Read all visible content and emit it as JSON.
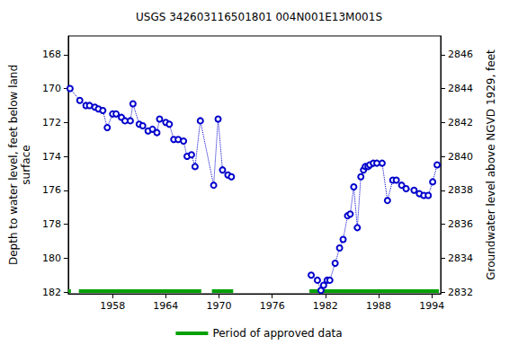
{
  "chart_data": {
    "type": "line",
    "title": "USGS 342603116501801 004N001E13M001S",
    "y_label": "Depth to water level, feet below land\nsurface",
    "y2_label": "Groundwater level above NGVD 1929, feet",
    "xlim": [
      1953,
      1995
    ],
    "xticks": [
      1958,
      1964,
      1970,
      1976,
      1982,
      1988,
      1994
    ],
    "ylim": [
      166.9,
      182.1
    ],
    "yticks": [
      168,
      170,
      172,
      174,
      176,
      178,
      180,
      182
    ],
    "y2lim": [
      2847.1,
      2831.9
    ],
    "y2ticks": [
      2832,
      2834,
      2836,
      2838,
      2840,
      2842,
      2844,
      2846
    ],
    "grid": false,
    "series": [
      {
        "color": "#0000cc",
        "marker": "open_circle",
        "line_style": "dotted",
        "x": [
          1953.2,
          1954.3,
          1955.0,
          1955.4,
          1956.0,
          1956.4,
          1956.9,
          1957.4,
          1958.0,
          1958.4,
          1959.0,
          1959.4,
          1960.0,
          1960.3,
          1961.0,
          1961.4,
          1962.0,
          1962.5,
          1963.0,
          1963.3,
          1964.0,
          1964.4,
          1964.9,
          1965.4,
          1966.0,
          1966.4,
          1966.9,
          1967.3,
          1967.9,
          1969.4,
          1969.9,
          1970.4,
          1971.0,
          1971.4
        ],
        "values": [
          170.0,
          170.7,
          171.0,
          171.0,
          171.1,
          171.2,
          171.3,
          172.3,
          171.5,
          171.5,
          171.7,
          171.9,
          171.9,
          170.9,
          172.1,
          172.2,
          172.5,
          172.4,
          172.6,
          171.8,
          172.0,
          172.1,
          173.0,
          173.0,
          173.1,
          174.0,
          173.9,
          174.6,
          171.9,
          175.7,
          171.8,
          174.8,
          175.1,
          175.2
        ]
      },
      {
        "color": "#0000cc",
        "marker": "open_circle",
        "line_style": "dotted",
        "x": [
          1980.4,
          1981.1,
          1981.5,
          1981.8,
          1982.2,
          1982.5,
          1983.1,
          1983.6,
          1984.0,
          1984.5,
          1984.8,
          1985.2,
          1985.6,
          1986.0,
          1986.3,
          1986.5,
          1986.8,
          1987.0,
          1987.4,
          1987.8,
          1988.4,
          1989.0,
          1989.6,
          1990.0,
          1990.6,
          1991.1,
          1992.0,
          1992.6,
          1993.1,
          1993.6,
          1994.1,
          1994.6
        ],
        "values": [
          181.0,
          181.3,
          181.9,
          181.6,
          181.3,
          181.3,
          180.3,
          179.4,
          178.9,
          177.5,
          177.4,
          175.8,
          178.2,
          175.2,
          174.8,
          174.6,
          174.6,
          174.5,
          174.4,
          174.4,
          174.4,
          176.6,
          175.4,
          175.4,
          175.7,
          175.9,
          176.0,
          176.2,
          176.3,
          176.3,
          175.5,
          174.5
        ]
      }
    ],
    "approved_periods": {
      "name": "Period of approved data",
      "color": "#00a000",
      "ranges": [
        [
          1953.0,
          1953.3
        ],
        [
          1954.2,
          1968.0
        ],
        [
          1969.2,
          1971.6
        ],
        [
          1980.2,
          1994.8
        ]
      ]
    },
    "legend": "bottom"
  }
}
